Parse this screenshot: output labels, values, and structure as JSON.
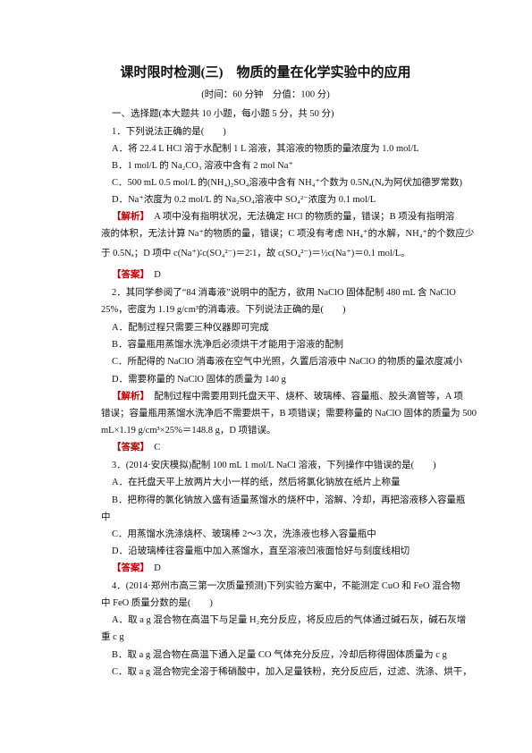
{
  "title": "课时限时检测(三)　物质的量在化学实验中的应用",
  "subtitle": "(时间：60 分钟　分值：100 分)",
  "lines": [
    {
      "text": "一、选择题(本大题共 10 小题，每小题 5 分，共 50 分)"
    },
    {
      "text": "1．下列说法正确的是(　　)"
    },
    {
      "text": "A．将 22.4 L HCl 溶于水配制 1 L 溶液，其溶液的物质的量浓度为 1.0 mol/L"
    },
    {
      "text": "B．1 mol/L 的 Na₂CO₃ 溶液中含有 2 mol Na⁺"
    },
    {
      "text": "C．500 mL 0.5 mol/L 的(NH₄)₂SO₄溶液中含有 NH₄⁺个数为 0.5Nₐ(Nₐ为阿伏加德罗常数)"
    },
    {
      "text": "D．Na⁺浓度为 0.2 mol/L 的 Na₂SO₄溶液中 SO₄²⁻浓度为 0.1 mol/L"
    },
    {
      "tag": "【解析】",
      "text": "　A 项中没有指明状况，无法确定 HCl 的物质的量，错误；B 项没有指明溶"
    },
    {
      "text": "液的体积，无法计算 Na⁺的物质的量，错误；C 项没有考虑 NH₄⁺的水解，NH₄⁺的个数应少"
    },
    {
      "text": "于 0.5Nₐ；D 项中 c(Na⁺)∶c(SO₄²⁻)＝2∶1，故 c(SO₄²⁻)＝½c(Na⁺)＝0.1 mol/L。"
    },
    {
      "tag": "【答案】",
      "text": "　D"
    },
    {
      "text": "2．其同学参阅了“84 消毒液”说明中的配方，欲用 NaClO 固体配制 480 mL 含 NaClO"
    },
    {
      "text": "25%，密度为 1.19 g/cm³的消毒液。下列说法正确的是(　　)"
    },
    {
      "text": "A．配制过程只需要三种仪器即可完成"
    },
    {
      "text": "B．容量瓶用蒸馏水洗净后必须烘干才能用于溶液的配制"
    },
    {
      "text": "C．所配得的 NaClO 消毒液在空气中光照，久置后溶液中 NaClO 的物质的量浓度减小"
    },
    {
      "text": "D．需要称量的 NaClO 固体的质量为 140 g"
    },
    {
      "tag": "【解析】",
      "text": "　配制过程中需要用到托盘天平、烧杯、玻璃棒、容量瓶、胶头滴管等，A 项"
    },
    {
      "text": "错误；容量瓶用蒸馏水洗净后不需要烘干，B 项错误；需要称量的 NaClO 固体的质量为 500"
    },
    {
      "text": "mL×1.19 g/cm³×25%＝148.8 g，D 项错误。"
    },
    {
      "tag": "【答案】",
      "text": "　C"
    },
    {
      "text": "3．(2014·安庆模拟)配制 100 mL 1 mol/L NaCl 溶液，下列操作中错误的是(　　)"
    },
    {
      "text": "A．在托盘天平上放两片大小一样的纸，然后将氯化钠放在纸片上称量"
    },
    {
      "text": "B．把称得的氯化钠放入盛有适量蒸馏水的烧杯中，溶解、冷却，再把溶液移入容量瓶"
    },
    {
      "text": "中"
    },
    {
      "text": "C．用蒸馏水洗涤烧杯、玻璃棒 2～3 次，洗涤液也移入容量瓶中"
    },
    {
      "text": "D．沿玻璃棒往容量瓶中加入蒸馏水，直至溶液凹液面恰好与刻度线相切"
    },
    {
      "tag": "【答案】",
      "text": "　D"
    },
    {
      "text": "4．(2014·郑州市高三第一次质量预测)下列实验方案中，不能测定 CuO 和 FeO 混合物"
    },
    {
      "text": "中 FeO 质量分数的是(　　)"
    },
    {
      "text": "A．取 a g 混合物在高温下与足量 H₂充分反应，将反应后的气体通过碱石灰，碱石灰增"
    },
    {
      "text": "重 c g"
    },
    {
      "text": "B．取 a g 混合物在高温下通入足量 CO 气体充分反应，冷却后称得固体质量为 c g"
    },
    {
      "text": "C．取 a g 混合物完全溶于稀硝酸中，加入足量铁粉，充分反应后，过滤、洗涤、烘干，"
    }
  ]
}
